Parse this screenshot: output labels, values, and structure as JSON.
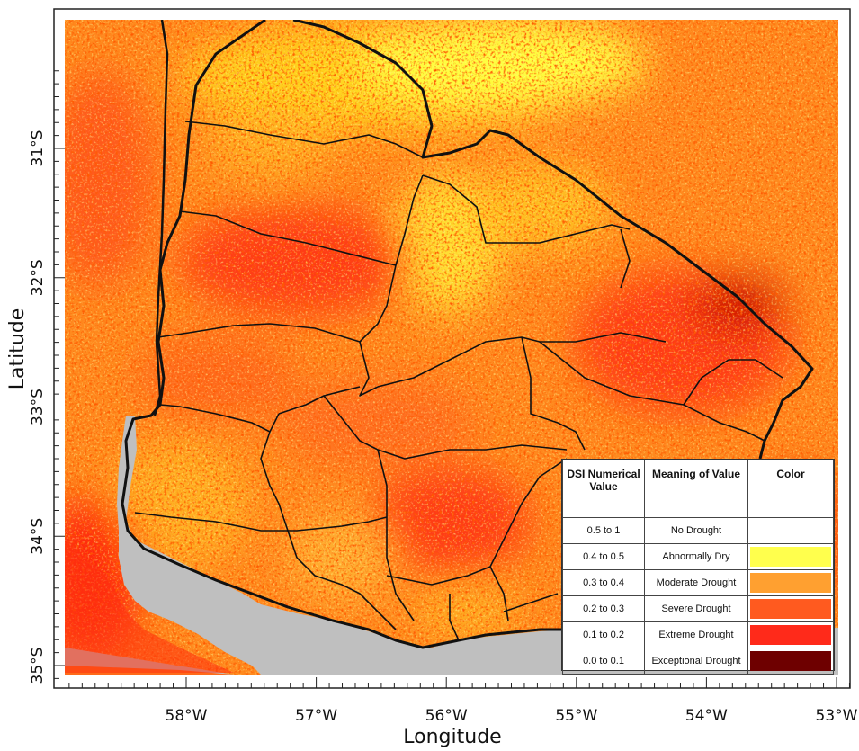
{
  "map": {
    "xlabel": "Longitude",
    "ylabel": "Latitude",
    "x_ticks": [
      {
        "value": -58,
        "label": "58°W"
      },
      {
        "value": -57,
        "label": "57°W"
      },
      {
        "value": -56,
        "label": "56°W"
      },
      {
        "value": -55,
        "label": "55°W"
      },
      {
        "value": -54,
        "label": "54°W"
      },
      {
        "value": -53,
        "label": "53°W"
      }
    ],
    "y_ticks": [
      {
        "value": -31,
        "label": "31°S"
      },
      {
        "value": -32,
        "label": "32°S"
      },
      {
        "value": -33,
        "label": "33°S"
      },
      {
        "value": -34,
        "label": "34°S"
      },
      {
        "value": -35,
        "label": "35°S"
      }
    ],
    "colors": {
      "water": "#bfbfbf",
      "background": "#ff8c1a",
      "border": "#111111"
    }
  },
  "legend": {
    "headers": [
      "DSI Numerical Value",
      "Meaning of Value",
      "Color"
    ],
    "rows": [
      {
        "range": "0.5 to 1",
        "meaning": "No Drought",
        "color": "#ffffff"
      },
      {
        "range": "0.4 to 0.5",
        "meaning": "Abnormally Dry",
        "color": "#ffff4d"
      },
      {
        "range": "0.3 to 0.4",
        "meaning": "Moderate Drought",
        "color": "#ffa030"
      },
      {
        "range": "0.2 to 0.3",
        "meaning": "Severe Drought",
        "color": "#ff5a1f"
      },
      {
        "range": "0.1 to 0.2",
        "meaning": "Extreme Drought",
        "color": "#ff2a1a"
      },
      {
        "range": "0.0 to 0.1",
        "meaning": "Exceptional Drought",
        "color": "#6e0000"
      }
    ]
  }
}
